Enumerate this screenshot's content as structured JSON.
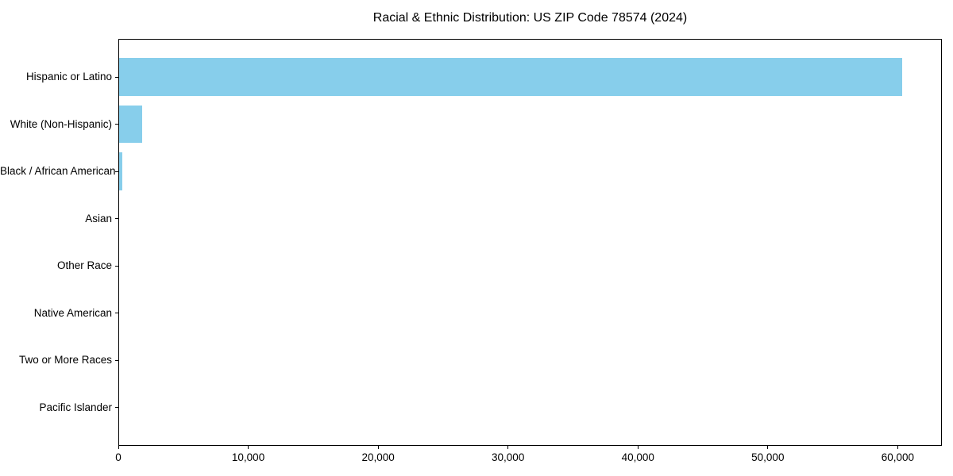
{
  "page": {
    "background": "#ffffff",
    "text_color": "#000000"
  },
  "chart_data": {
    "type": "bar",
    "orientation": "horizontal",
    "title": "Racial & Ethnic Distribution: US ZIP Code 78574 (2024)",
    "categories": [
      "Hispanic or Latino",
      "White (Non-Hispanic)",
      "Black / African American",
      "Asian",
      "Other Race",
      "Native American",
      "Two or More Races",
      "Pacific Islander"
    ],
    "values": [
      60400,
      1800,
      260,
      0,
      0,
      0,
      0,
      0
    ],
    "xlabel": "",
    "ylabel": "",
    "xlim": [
      0,
      63400
    ],
    "x_ticks": [
      0,
      10000,
      20000,
      30000,
      40000,
      50000,
      60000
    ],
    "x_tick_labels": [
      "0",
      "10,000",
      "20,000",
      "30,000",
      "40,000",
      "50,000",
      "60,000"
    ],
    "bar_color": "#87ceeb",
    "axis_color": "#000000",
    "grid": false,
    "legend": "none"
  }
}
